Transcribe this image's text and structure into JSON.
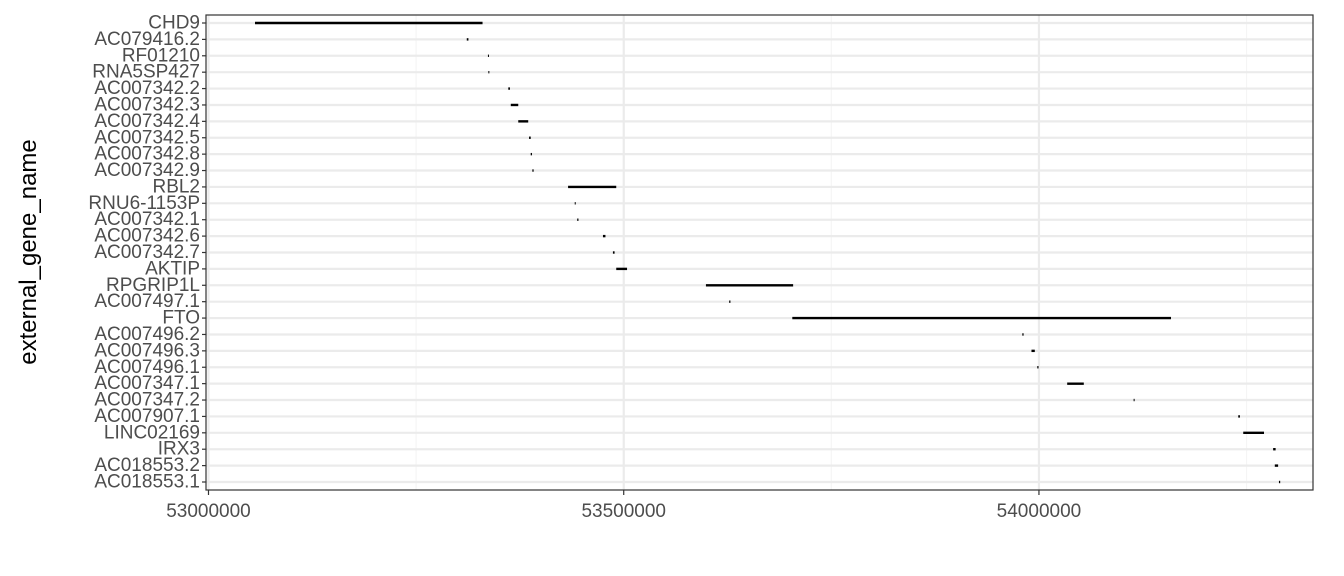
{
  "chart_data": {
    "type": "gantt",
    "ylabel": "external_gene_name",
    "xlim": [
      52997000,
      54330000
    ],
    "x_ticks": [
      53000000,
      53500000,
      54000000
    ],
    "x_tick_labels": [
      "53000000",
      "53500000",
      "54000000"
    ],
    "grid": true,
    "theme": "bw",
    "colors": {
      "bar": "#000000",
      "grid_major": "#ebebeb",
      "grid_minor": "#f5f5f5",
      "frame": "#333333"
    },
    "genes": [
      {
        "name": "CHD9",
        "start": 53056000,
        "end": 53330000
      },
      {
        "name": "AC079416.2",
        "start": 53311000,
        "end": 53313000
      },
      {
        "name": "RF01210",
        "start": 53336500,
        "end": 53337000
      },
      {
        "name": "RNA5SP427",
        "start": 53337000,
        "end": 53337500
      },
      {
        "name": "AC007342.2",
        "start": 53361000,
        "end": 53363000
      },
      {
        "name": "AC007342.3",
        "start": 53364000,
        "end": 53373000
      },
      {
        "name": "AC007342.4",
        "start": 53373000,
        "end": 53385000
      },
      {
        "name": "AC007342.5",
        "start": 53386000,
        "end": 53388000
      },
      {
        "name": "AC007342.8",
        "start": 53388000,
        "end": 53389500
      },
      {
        "name": "AC007342.9",
        "start": 53390000,
        "end": 53391500
      },
      {
        "name": "RBL2",
        "start": 53433000,
        "end": 53491000
      },
      {
        "name": "RNU6-1153P",
        "start": 53441000,
        "end": 53441500
      },
      {
        "name": "AC007342.1",
        "start": 53444000,
        "end": 53445500
      },
      {
        "name": "AC007342.6",
        "start": 53475000,
        "end": 53478000
      },
      {
        "name": "AC007342.7",
        "start": 53487000,
        "end": 53489000
      },
      {
        "name": "AKTIP",
        "start": 53491000,
        "end": 53504000
      },
      {
        "name": "RPGRIP1L",
        "start": 53599000,
        "end": 53704000
      },
      {
        "name": "AC007497.1",
        "start": 53627000,
        "end": 53628500
      },
      {
        "name": "FTO",
        "start": 53703000,
        "end": 54159000
      },
      {
        "name": "AC007496.2",
        "start": 53980000,
        "end": 53981500
      },
      {
        "name": "AC007496.3",
        "start": 53991000,
        "end": 53995000
      },
      {
        "name": "AC007496.1",
        "start": 53998000,
        "end": 53999500
      },
      {
        "name": "AC007347.1",
        "start": 54034000,
        "end": 54054000
      },
      {
        "name": "AC007347.2",
        "start": 54114000,
        "end": 54115000
      },
      {
        "name": "AC007907.1",
        "start": 54240000,
        "end": 54242000
      },
      {
        "name": "LINC02169",
        "start": 54246000,
        "end": 54271000
      },
      {
        "name": "IRX3",
        "start": 54282000,
        "end": 54285000
      },
      {
        "name": "AC018553.2",
        "start": 54284000,
        "end": 54288000
      },
      {
        "name": "AC018553.1",
        "start": 54289000,
        "end": 54290500
      }
    ]
  }
}
